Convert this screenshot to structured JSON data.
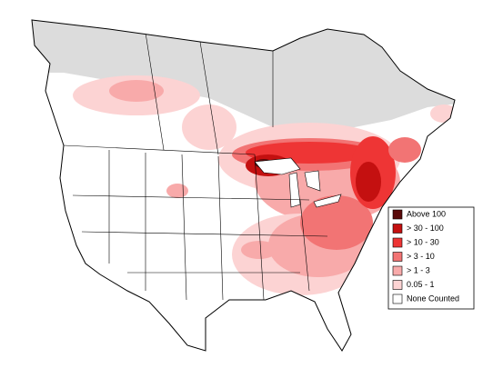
{
  "legend": {
    "items": [
      {
        "label": "Above 100",
        "color": "#5a0a0a"
      },
      {
        "label": "> 30 - 100",
        "color": "#c41010"
      },
      {
        "label": "> 10 - 30",
        "color": "#ee3535"
      },
      {
        "label": "> 3 - 10",
        "color": "#f27474"
      },
      {
        "label": "> 1 - 3",
        "color": "#f8aaaa"
      },
      {
        "label": "0.05 - 1",
        "color": "#fcd3d3"
      },
      {
        "label": "None Counted",
        "color": "#ffffff"
      }
    ]
  }
}
